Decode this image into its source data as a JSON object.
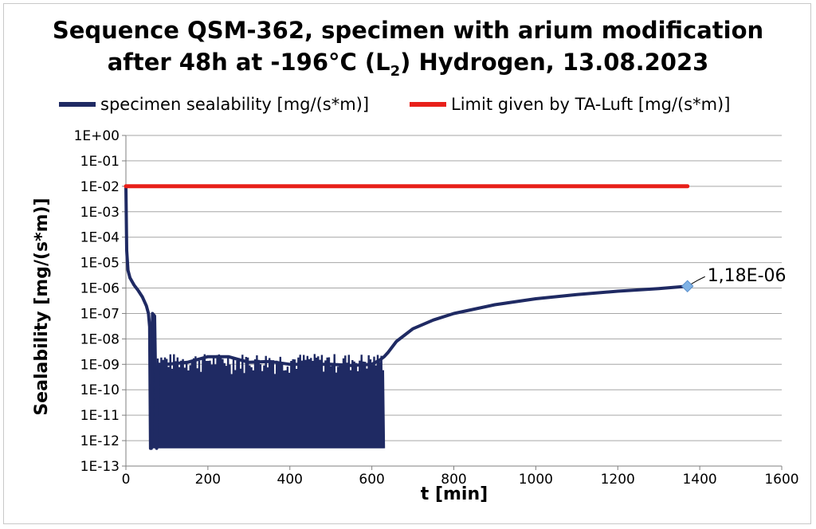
{
  "chart_data": {
    "type": "line",
    "title_line1": "Sequence QSM-362, specimen with arium modification",
    "title_line2_pre": "after 48h at -196°C (L",
    "title_line2_sub": "2",
    "title_line2_post": ") Hydrogen, 13.08.2023",
    "xlabel": "t [min]",
    "ylabel": "Sealability [mg/(s*m)]",
    "xlim": [
      0,
      1600
    ],
    "ylim": [
      1e-13,
      1
    ],
    "y_scale": "log",
    "grid": true,
    "legend_position": "top",
    "x_ticks": [
      "0",
      "200",
      "400",
      "600",
      "800",
      "1000",
      "1200",
      "1400",
      "1600"
    ],
    "y_ticks": [
      "1E-13",
      "1E-12",
      "1E-11",
      "1E-10",
      "1E-09",
      "1E-08",
      "1E-07",
      "1E-06",
      "1E-05",
      "1E-04",
      "1E-03",
      "1E-02",
      "1E-01",
      "1E+00"
    ],
    "series": [
      {
        "name": "specimen sealability [mg/(s*m)]",
        "color": "#1f2a63",
        "x": [
          0,
          2,
          5,
          10,
          20,
          30,
          40,
          50,
          55,
          58,
          60,
          62,
          65,
          70,
          75,
          80,
          100,
          150,
          200,
          250,
          300,
          350,
          400,
          450,
          500,
          550,
          600,
          620,
          630,
          640,
          660,
          700,
          750,
          800,
          900,
          1000,
          1100,
          1200,
          1300,
          1370
        ],
        "y": [
          0.01,
          3e-05,
          5e-06,
          2.5e-06,
          1.3e-06,
          8e-07,
          4.5e-07,
          2e-07,
          1e-07,
          3e-08,
          5e-13,
          5e-13,
          1e-07,
          8e-08,
          5e-13,
          1e-09,
          1e-09,
          1.2e-09,
          2e-09,
          2e-09,
          1.2e-09,
          1.3e-09,
          1e-09,
          1e-09,
          1e-09,
          9e-10,
          1e-09,
          1.5e-09,
          2e-09,
          3e-09,
          8e-09,
          2.5e-08,
          5.5e-08,
          1e-07,
          2.2e-07,
          3.8e-07,
          5.5e-07,
          7.5e-07,
          9.5e-07,
          1.18e-06
        ]
      },
      {
        "name": "Limit given by TA-Luft [mg/(s*m)]",
        "color": "#e8201a",
        "x": [
          0,
          1370
        ],
        "y": [
          0.01,
          0.01
        ]
      }
    ],
    "noise_region": {
      "x_start": 60,
      "x_end": 632,
      "y_low": 5e-13,
      "y_high": 1e-09
    },
    "annotation": {
      "text": "1,18E-06",
      "x": 1370,
      "y": 1.18e-06,
      "marker_color": "#7fb2e5"
    }
  }
}
